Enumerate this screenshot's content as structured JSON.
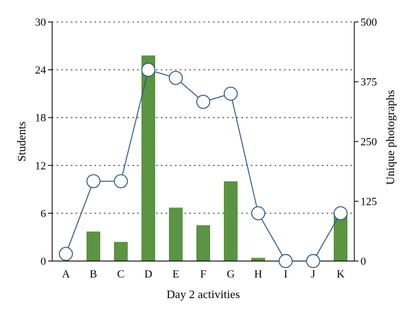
{
  "chart_data": {
    "type": "bar",
    "categories": [
      "A",
      "B",
      "C",
      "D",
      "E",
      "F",
      "G",
      "H",
      "I",
      "J",
      "K"
    ],
    "xlabel": "Day 2 activities",
    "ylabel": "Students",
    "y2label": "Unique photographs",
    "ylim": [
      0,
      30
    ],
    "y2lim": [
      0,
      500
    ],
    "yticks": [
      0,
      6,
      12,
      18,
      24,
      30
    ],
    "y2ticks": [
      0,
      125,
      250,
      375,
      500
    ],
    "grid": "horizontal-dotted",
    "colors": {
      "bars": "#5b9442",
      "line": "#2e5a82",
      "marker_fill": "#ffffff",
      "grid": "#444444",
      "axis": "#000000"
    },
    "series": [
      {
        "type": "bar",
        "axis": "left",
        "values": [
          0,
          3.7,
          2.4,
          25.8,
          6.7,
          4.5,
          10.0,
          0.4,
          0,
          0,
          6.0
        ]
      },
      {
        "type": "line",
        "axis": "right",
        "marker": "open-circle",
        "values": [
          15,
          167,
          167,
          400,
          383,
          333,
          350,
          100,
          0,
          0,
          100
        ]
      }
    ]
  }
}
